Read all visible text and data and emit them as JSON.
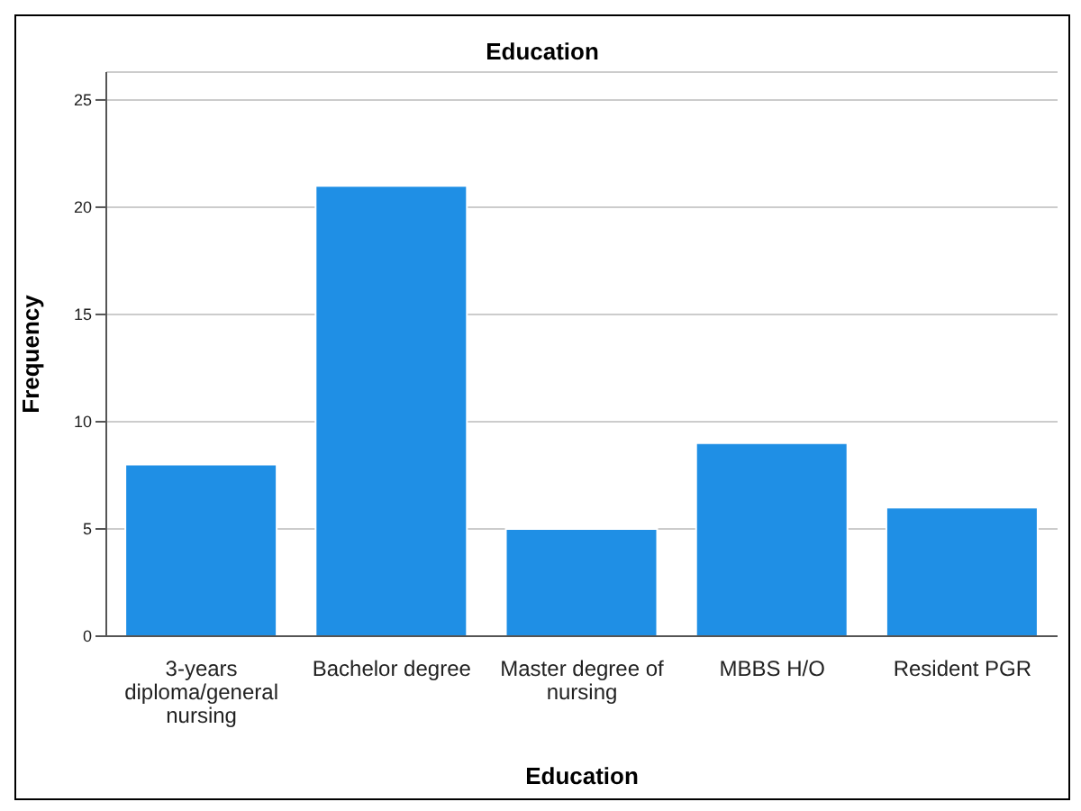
{
  "chart_data": {
    "type": "bar",
    "title": "Education",
    "xlabel": "Education",
    "ylabel": "Frequency",
    "categories": [
      "3-years diploma/general nursing",
      "Bachelor degree",
      "Master degree of nursing",
      "MBBS H/O",
      "Resident PGR"
    ],
    "values": [
      8,
      21,
      5,
      9,
      6
    ],
    "color": "#1f8fe5",
    "ylim": [
      0,
      26.3
    ],
    "yticks": [
      0,
      5,
      10,
      15,
      20,
      25
    ],
    "grid": "y",
    "legend": false
  }
}
